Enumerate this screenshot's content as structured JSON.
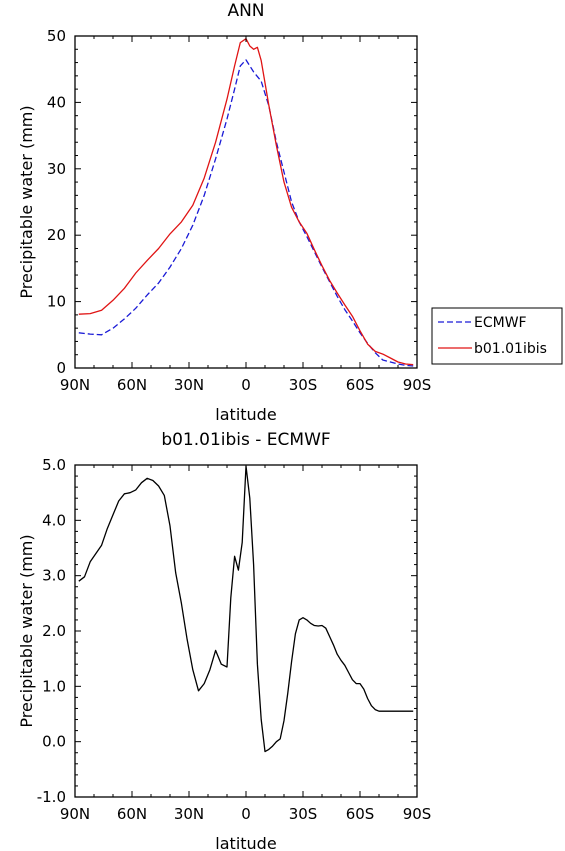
{
  "chart_data": [
    {
      "type": "line",
      "title": "ANN",
      "xlabel": "latitude",
      "ylabel": "Precipitable water (mm)",
      "xlim": [
        90,
        -90
      ],
      "ylim": [
        0,
        50
      ],
      "x_ticks": [
        90,
        60,
        30,
        0,
        -30,
        -60,
        -90
      ],
      "x_tick_labels": [
        "90N",
        "60N",
        "30N",
        "0",
        "30S",
        "60S",
        "90S"
      ],
      "y_ticks": [
        0,
        10,
        20,
        30,
        40,
        50
      ],
      "y_tick_labels": [
        "0",
        "10",
        "20",
        "30",
        "40",
        "50"
      ],
      "legend_position": "right",
      "series": [
        {
          "name": "ECMWF",
          "color": "#1a1ad6",
          "dash": "dashed",
          "x": [
            88,
            82,
            76,
            70,
            64,
            58,
            52,
            46,
            40,
            34,
            28,
            22,
            16,
            10,
            6,
            3,
            0,
            -4,
            -8,
            -12,
            -16,
            -20,
            -24,
            -28,
            -32,
            -36,
            -40,
            -44,
            -48,
            -52,
            -56,
            -60,
            -64,
            -68,
            -72,
            -76,
            -80,
            -84,
            -88
          ],
          "y": [
            5.3,
            5.1,
            5.0,
            6.0,
            7.4,
            9.0,
            11.0,
            12.8,
            15.2,
            18.0,
            21.5,
            26.0,
            31.5,
            37.5,
            42.0,
            45.5,
            46.4,
            44.6,
            43.2,
            39.5,
            34.0,
            29.5,
            25.0,
            22.0,
            19.8,
            17.5,
            15.2,
            13.0,
            10.8,
            8.8,
            7.1,
            5.3,
            3.7,
            2.3,
            1.2,
            0.9,
            0.6,
            0.4,
            0.3
          ]
        },
        {
          "name": "b01.01ibis",
          "color": "#e01414",
          "dash": "solid",
          "x": [
            88,
            82,
            76,
            70,
            64,
            58,
            52,
            46,
            40,
            34,
            28,
            22,
            16,
            10,
            6,
            3,
            0,
            -2,
            -4,
            -6,
            -8,
            -12,
            -16,
            -20,
            -24,
            -28,
            -32,
            -36,
            -40,
            -44,
            -48,
            -52,
            -56,
            -60,
            -64,
            -68,
            -72,
            -76,
            -80,
            -84,
            -88
          ],
          "y": [
            8.1,
            8.2,
            8.7,
            10.2,
            12.0,
            14.3,
            16.2,
            18.0,
            20.2,
            22.0,
            24.5,
            28.6,
            34.0,
            40.5,
            45.5,
            49.0,
            49.6,
            48.5,
            48.0,
            48.3,
            46.3,
            39.6,
            33.5,
            28.0,
            24.2,
            22.0,
            20.3,
            17.8,
            15.4,
            13.2,
            11.3,
            9.5,
            7.8,
            5.6,
            3.6,
            2.5,
            2.1,
            1.5,
            0.9,
            0.6,
            0.5
          ]
        }
      ]
    },
    {
      "type": "line",
      "title": "b01.01ibis - ECMWF",
      "xlabel": "latitude",
      "ylabel": "Precipitable water (mm)",
      "xlim": [
        90,
        -90
      ],
      "ylim": [
        -1.0,
        5.0
      ],
      "x_ticks": [
        90,
        60,
        30,
        0,
        -30,
        -60,
        -90
      ],
      "x_tick_labels": [
        "90N",
        "60N",
        "30N",
        "0",
        "30S",
        "60S",
        "90S"
      ],
      "y_ticks": [
        -1.0,
        0.0,
        1.0,
        2.0,
        3.0,
        4.0,
        5.0
      ],
      "y_tick_labels": [
        "-1.0",
        "0.0",
        "1.0",
        "2.0",
        "3.0",
        "4.0",
        "5.0"
      ],
      "series": [
        {
          "name": "",
          "color": "#000000",
          "dash": "solid",
          "x": [
            88,
            85,
            82,
            79,
            76,
            73,
            70,
            67,
            64,
            61,
            58,
            55,
            52,
            49,
            46,
            43,
            40,
            37,
            34,
            31,
            28,
            25,
            22,
            19,
            16,
            13,
            10,
            8,
            6,
            4,
            2,
            0,
            -2,
            -4,
            -6,
            -8,
            -10,
            -12,
            -14,
            -16,
            -18,
            -20,
            -22,
            -24,
            -26,
            -28,
            -30,
            -32,
            -34,
            -36,
            -38,
            -40,
            -42,
            -44,
            -46,
            -48,
            -50,
            -52,
            -54,
            -56,
            -58,
            -60,
            -62,
            -64,
            -66,
            -68,
            -70,
            -72,
            -74,
            -76,
            -78,
            -80,
            -82,
            -84,
            -86,
            -88
          ],
          "y": [
            2.9,
            2.98,
            3.25,
            3.4,
            3.55,
            3.85,
            4.1,
            4.35,
            4.48,
            4.5,
            4.55,
            4.68,
            4.76,
            4.72,
            4.62,
            4.45,
            3.9,
            3.05,
            2.5,
            1.85,
            1.3,
            0.92,
            1.05,
            1.3,
            1.65,
            1.4,
            1.35,
            2.6,
            3.35,
            3.1,
            3.6,
            4.98,
            4.4,
            3.2,
            1.4,
            0.4,
            -0.18,
            -0.14,
            -0.08,
            0.0,
            0.05,
            0.38,
            0.88,
            1.45,
            1.95,
            2.2,
            2.24,
            2.2,
            2.14,
            2.1,
            2.09,
            2.1,
            2.05,
            1.9,
            1.75,
            1.58,
            1.47,
            1.38,
            1.25,
            1.12,
            1.05,
            1.05,
            0.95,
            0.78,
            0.65,
            0.58,
            0.55,
            0.55,
            0.55,
            0.55,
            0.55,
            0.55,
            0.55,
            0.55,
            0.55,
            0.55
          ]
        }
      ]
    }
  ]
}
